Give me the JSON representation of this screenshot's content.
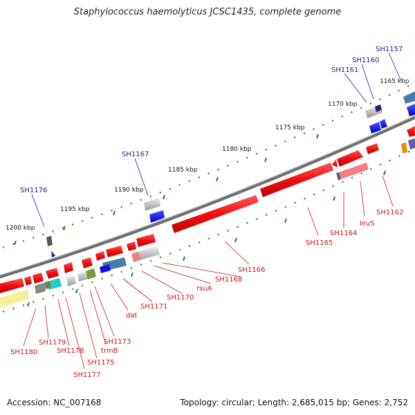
{
  "title": "Staphylococcus haemolyticus JCSC1435, complete genome",
  "footer": {
    "accession": "Accession: NC_007168",
    "summary": "Topology: circular; Length: 2,685,015 bp; Genes: 2,752"
  },
  "colors": {
    "backbone": "#808080",
    "forward_gene": "#ee1111",
    "reverse_gene": "#1111dd",
    "tick": "#2a7a2a",
    "label_blue": "#1a1a99",
    "label_red": "#cc1111"
  },
  "scale_labels": [
    "1165 kbp",
    "1170 kbp",
    "1175 kbp",
    "1180 kbp",
    "1185 kbp",
    "1190 kbp",
    "1195 kbp",
    "1200 kbp"
  ],
  "outer_gene_labels": [
    "SH1157",
    "SH1160",
    "SH1161",
    "SH1167",
    "SH1176"
  ],
  "inner_gene_labels": [
    "SH1162",
    "leuS",
    "SH1164",
    "SH1165",
    "SH1166",
    "SH1168",
    "rsuA",
    "SH1170",
    "SH1171",
    "dat",
    "SH1173",
    "trmB",
    "SH1175",
    "SH1177",
    "SH1178",
    "SH1179",
    "SH1180"
  ]
}
